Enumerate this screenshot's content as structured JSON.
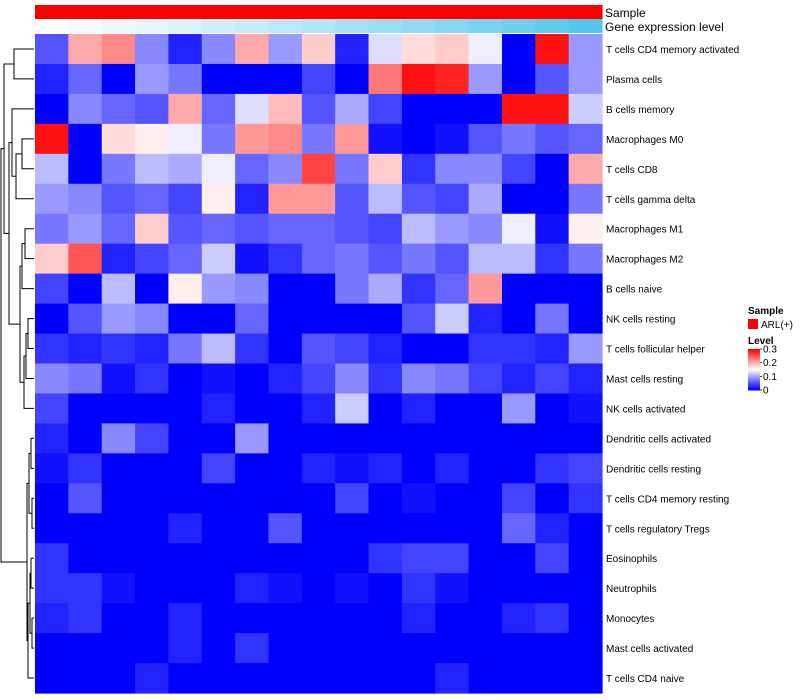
{
  "chart_data": {
    "type": "heatmap",
    "annotation_tracks": [
      {
        "label": "Sample",
        "colors": [
          "#ff0000",
          "#ff0000",
          "#ff0000",
          "#ff0000",
          "#ff0000",
          "#ff0000",
          "#ff0000",
          "#ff0000",
          "#ff0000",
          "#ff0000",
          "#ff0000",
          "#ff0000",
          "#ff0000",
          "#ff0000",
          "#ff0000",
          "#ff0000",
          "#ff0000"
        ]
      },
      {
        "label": "Gene expression level",
        "colors": [
          "#ffffff",
          "#f7fbfd",
          "#eef8fb",
          "#e5f5fb",
          "#dbf2fa",
          "#d1eef9",
          "#c7ebf8",
          "#bde8f7",
          "#b3e5f6",
          "#a8e1f5",
          "#9ddef4",
          "#92daf3",
          "#86d6f2",
          "#7ad3f1",
          "#6ecff0",
          "#61cbef",
          "#54c7ee"
        ]
      }
    ],
    "rows": [
      "T cells CD4 memory activated",
      "Plasma cells",
      "B cells memory",
      "Macrophages M0",
      "T cells CD8",
      "T cells gamma delta",
      "Macrophages M1",
      "Macrophages M2",
      "B cells naive",
      "NK cells resting",
      "T cells follicular helper",
      "Mast cells resting",
      "NK cells activated",
      "Dendritic cells activated",
      "Dendritic cells resting",
      "T cells CD4 memory resting",
      "T cells regulatory  Tregs",
      "Eosinophils",
      "Neutrophils",
      "Monocytes",
      "Mast cells activated",
      "T cells CD4 naive"
    ],
    "values": [
      [
        0.05,
        0.2,
        0.22,
        0.08,
        0.02,
        0.08,
        0.2,
        0.09,
        0.18,
        0.02,
        0.13,
        0.17,
        0.18,
        0.14,
        0.0,
        0.29,
        0.09
      ],
      [
        0.02,
        0.06,
        0.0,
        0.09,
        0.07,
        0.0,
        0.0,
        0.0,
        0.04,
        0.0,
        0.23,
        0.29,
        0.28,
        0.09,
        0.0,
        0.05,
        0.09
      ],
      [
        0.0,
        0.08,
        0.06,
        0.05,
        0.2,
        0.06,
        0.13,
        0.19,
        0.05,
        0.1,
        0.04,
        0.0,
        0.0,
        0.0,
        0.29,
        0.29,
        0.12
      ],
      [
        0.29,
        0.0,
        0.17,
        0.16,
        0.14,
        0.07,
        0.21,
        0.22,
        0.07,
        0.21,
        0.01,
        0.0,
        0.01,
        0.05,
        0.07,
        0.05,
        0.06
      ],
      [
        0.11,
        0.0,
        0.07,
        0.11,
        0.1,
        0.14,
        0.06,
        0.08,
        0.26,
        0.07,
        0.18,
        0.03,
        0.08,
        0.08,
        0.04,
        0.0,
        0.2
      ],
      [
        0.09,
        0.08,
        0.05,
        0.06,
        0.04,
        0.16,
        0.02,
        0.21,
        0.21,
        0.05,
        0.11,
        0.05,
        0.04,
        0.1,
        0.0,
        0.0,
        0.07
      ],
      [
        0.07,
        0.09,
        0.06,
        0.18,
        0.05,
        0.06,
        0.05,
        0.06,
        0.06,
        0.05,
        0.04,
        0.11,
        0.09,
        0.08,
        0.14,
        0.01,
        0.16
      ],
      [
        0.18,
        0.25,
        0.02,
        0.04,
        0.06,
        0.12,
        0.01,
        0.03,
        0.06,
        0.07,
        0.05,
        0.07,
        0.05,
        0.11,
        0.11,
        0.03,
        0.07
      ],
      [
        0.04,
        0.0,
        0.11,
        0.0,
        0.16,
        0.09,
        0.08,
        0.0,
        0.0,
        0.07,
        0.1,
        0.03,
        0.06,
        0.21,
        0.0,
        0.0,
        0.0
      ],
      [
        0.0,
        0.05,
        0.09,
        0.08,
        0.0,
        0.0,
        0.06,
        0.0,
        0.0,
        0.0,
        0.0,
        0.05,
        0.12,
        0.02,
        0.0,
        0.07,
        0.0
      ],
      [
        0.03,
        0.02,
        0.03,
        0.02,
        0.07,
        0.11,
        0.03,
        0.0,
        0.05,
        0.04,
        0.02,
        0.0,
        0.0,
        0.03,
        0.03,
        0.02,
        0.09
      ],
      [
        0.08,
        0.07,
        0.01,
        0.03,
        0.0,
        0.01,
        0.0,
        0.02,
        0.04,
        0.08,
        0.03,
        0.08,
        0.07,
        0.04,
        0.02,
        0.04,
        0.02
      ],
      [
        0.04,
        0.0,
        0.0,
        0.0,
        0.0,
        0.02,
        0.0,
        0.0,
        0.02,
        0.12,
        0.0,
        0.02,
        0.0,
        0.0,
        0.09,
        0.0,
        0.01
      ],
      [
        0.02,
        0.0,
        0.08,
        0.04,
        0.0,
        0.0,
        0.09,
        0.0,
        0.0,
        0.0,
        0.0,
        0.0,
        0.0,
        0.0,
        0.0,
        0.0,
        0.0
      ],
      [
        0.01,
        0.03,
        0.0,
        0.0,
        0.0,
        0.04,
        0.0,
        0.0,
        0.02,
        0.01,
        0.02,
        0.0,
        0.02,
        0.0,
        0.0,
        0.03,
        0.04
      ],
      [
        0.0,
        0.05,
        0.0,
        0.0,
        0.0,
        0.0,
        0.0,
        0.0,
        0.0,
        0.04,
        0.0,
        0.01,
        0.0,
        0.0,
        0.04,
        0.0,
        0.03
      ],
      [
        0.0,
        0.0,
        0.0,
        0.0,
        0.02,
        0.0,
        0.0,
        0.05,
        0.0,
        0.0,
        0.0,
        0.0,
        0.0,
        0.0,
        0.06,
        0.02,
        0.0
      ],
      [
        0.03,
        0.0,
        0.0,
        0.0,
        0.0,
        0.0,
        0.0,
        0.0,
        0.0,
        0.0,
        0.03,
        0.04,
        0.04,
        0.0,
        0.0,
        0.04,
        0.0
      ],
      [
        0.03,
        0.03,
        0.01,
        0.0,
        0.0,
        0.0,
        0.02,
        0.01,
        0.0,
        0.01,
        0.0,
        0.03,
        0.01,
        0.0,
        0.0,
        0.0,
        0.0
      ],
      [
        0.02,
        0.03,
        0.0,
        0.0,
        0.02,
        0.0,
        0.0,
        0.0,
        0.0,
        0.0,
        0.0,
        0.02,
        0.0,
        0.0,
        0.02,
        0.03,
        0.0
      ],
      [
        0.0,
        0.0,
        0.0,
        0.0,
        0.02,
        0.0,
        0.03,
        0.0,
        0.0,
        0.0,
        0.0,
        0.0,
        0.0,
        0.0,
        0.0,
        0.0,
        0.0
      ],
      [
        0.0,
        0.0,
        0.0,
        0.02,
        0.0,
        0.0,
        0.0,
        0.0,
        0.0,
        0.0,
        0.0,
        0.0,
        0.02,
        0.0,
        0.0,
        0.0,
        0.0
      ]
    ],
    "color_scale": {
      "min": 0,
      "mid": 0.15,
      "max": 0.3,
      "low_color": "#0000ff",
      "mid_color": "#ffffff",
      "high_color": "#ff0000"
    },
    "legend": {
      "sample_title": "Sample",
      "sample_entry": "ARL(+)",
      "sample_color": "#ff0000",
      "level_title": "Level",
      "ticks": [
        "0.3",
        "0.2",
        "0.1",
        "0"
      ],
      "tick_values": [
        0.3,
        0.2,
        0.1,
        0
      ]
    },
    "dendrogram": "row dendrogram (left)"
  }
}
